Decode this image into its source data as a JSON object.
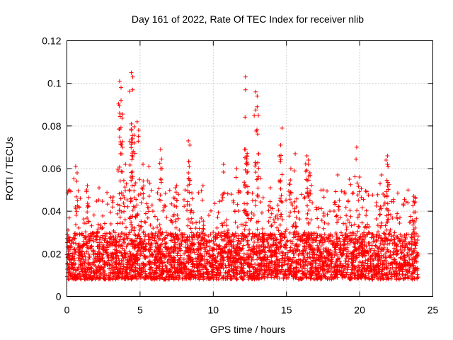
{
  "chart_data": {
    "type": "scatter",
    "title": "Day 161 of 2022, Rate Of TEC Index for receiver nlib",
    "xlabel": "GPS time / hours",
    "ylabel": "ROTI / TECUs",
    "xlim": [
      0,
      25
    ],
    "ylim": [
      0,
      0.12
    ],
    "xticks": [
      "0",
      "5",
      "10",
      "15",
      "20",
      "25"
    ],
    "yticks": [
      "0",
      "0.02",
      "0.04",
      "0.06",
      "0.08",
      "0.1",
      "0.12"
    ],
    "grid": true,
    "marker": "plus",
    "color": "#ff0000",
    "x_extent": [
      0,
      24
    ],
    "baseline_band": [
      0.008,
      0.03
    ],
    "highlights": [
      {
        "x": 0.6,
        "y": 0.061
      },
      {
        "x": 0.7,
        "y": 0.058
      },
      {
        "x": 1.4,
        "y": 0.052
      },
      {
        "x": 2.2,
        "y": 0.051
      },
      {
        "x": 3.6,
        "y": 0.101
      },
      {
        "x": 3.7,
        "y": 0.098
      },
      {
        "x": 3.7,
        "y": 0.092
      },
      {
        "x": 3.6,
        "y": 0.086
      },
      {
        "x": 3.8,
        "y": 0.07
      },
      {
        "x": 4.0,
        "y": 0.062
      },
      {
        "x": 4.4,
        "y": 0.105
      },
      {
        "x": 4.5,
        "y": 0.103
      },
      {
        "x": 4.5,
        "y": 0.097
      },
      {
        "x": 4.4,
        "y": 0.081
      },
      {
        "x": 4.4,
        "y": 0.078
      },
      {
        "x": 4.5,
        "y": 0.074
      },
      {
        "x": 4.6,
        "y": 0.072
      },
      {
        "x": 4.8,
        "y": 0.082
      },
      {
        "x": 4.9,
        "y": 0.078
      },
      {
        "x": 5.2,
        "y": 0.062
      },
      {
        "x": 5.6,
        "y": 0.061
      },
      {
        "x": 6.4,
        "y": 0.069
      },
      {
        "x": 6.5,
        "y": 0.06
      },
      {
        "x": 7.5,
        "y": 0.052
      },
      {
        "x": 7.4,
        "y": 0.051
      },
      {
        "x": 8.3,
        "y": 0.073
      },
      {
        "x": 8.4,
        "y": 0.071
      },
      {
        "x": 8.3,
        "y": 0.058
      },
      {
        "x": 9.3,
        "y": 0.052
      },
      {
        "x": 10.7,
        "y": 0.062
      },
      {
        "x": 11.6,
        "y": 0.06
      },
      {
        "x": 12.2,
        "y": 0.103
      },
      {
        "x": 12.2,
        "y": 0.097
      },
      {
        "x": 12.2,
        "y": 0.069
      },
      {
        "x": 12.3,
        "y": 0.066
      },
      {
        "x": 12.3,
        "y": 0.063
      },
      {
        "x": 12.9,
        "y": 0.096
      },
      {
        "x": 13.0,
        "y": 0.094
      },
      {
        "x": 13.0,
        "y": 0.089
      },
      {
        "x": 13.1,
        "y": 0.067
      },
      {
        "x": 13.9,
        "y": 0.051
      },
      {
        "x": 14.7,
        "y": 0.079
      },
      {
        "x": 14.6,
        "y": 0.071
      },
      {
        "x": 14.5,
        "y": 0.066
      },
      {
        "x": 15.3,
        "y": 0.06
      },
      {
        "x": 15.6,
        "y": 0.067
      },
      {
        "x": 16.4,
        "y": 0.066
      },
      {
        "x": 16.5,
        "y": 0.064
      },
      {
        "x": 16.5,
        "y": 0.062
      },
      {
        "x": 16.6,
        "y": 0.058
      },
      {
        "x": 17.5,
        "y": 0.05
      },
      {
        "x": 18.5,
        "y": 0.057
      },
      {
        "x": 19.3,
        "y": 0.055
      },
      {
        "x": 19.8,
        "y": 0.07
      },
      {
        "x": 20.0,
        "y": 0.056
      },
      {
        "x": 21.5,
        "y": 0.057
      },
      {
        "x": 21.9,
        "y": 0.066
      },
      {
        "x": 21.8,
        "y": 0.064
      },
      {
        "x": 21.9,
        "y": 0.062
      },
      {
        "x": 23.7,
        "y": 0.047
      },
      {
        "x": 23.8,
        "y": 0.046
      }
    ]
  }
}
